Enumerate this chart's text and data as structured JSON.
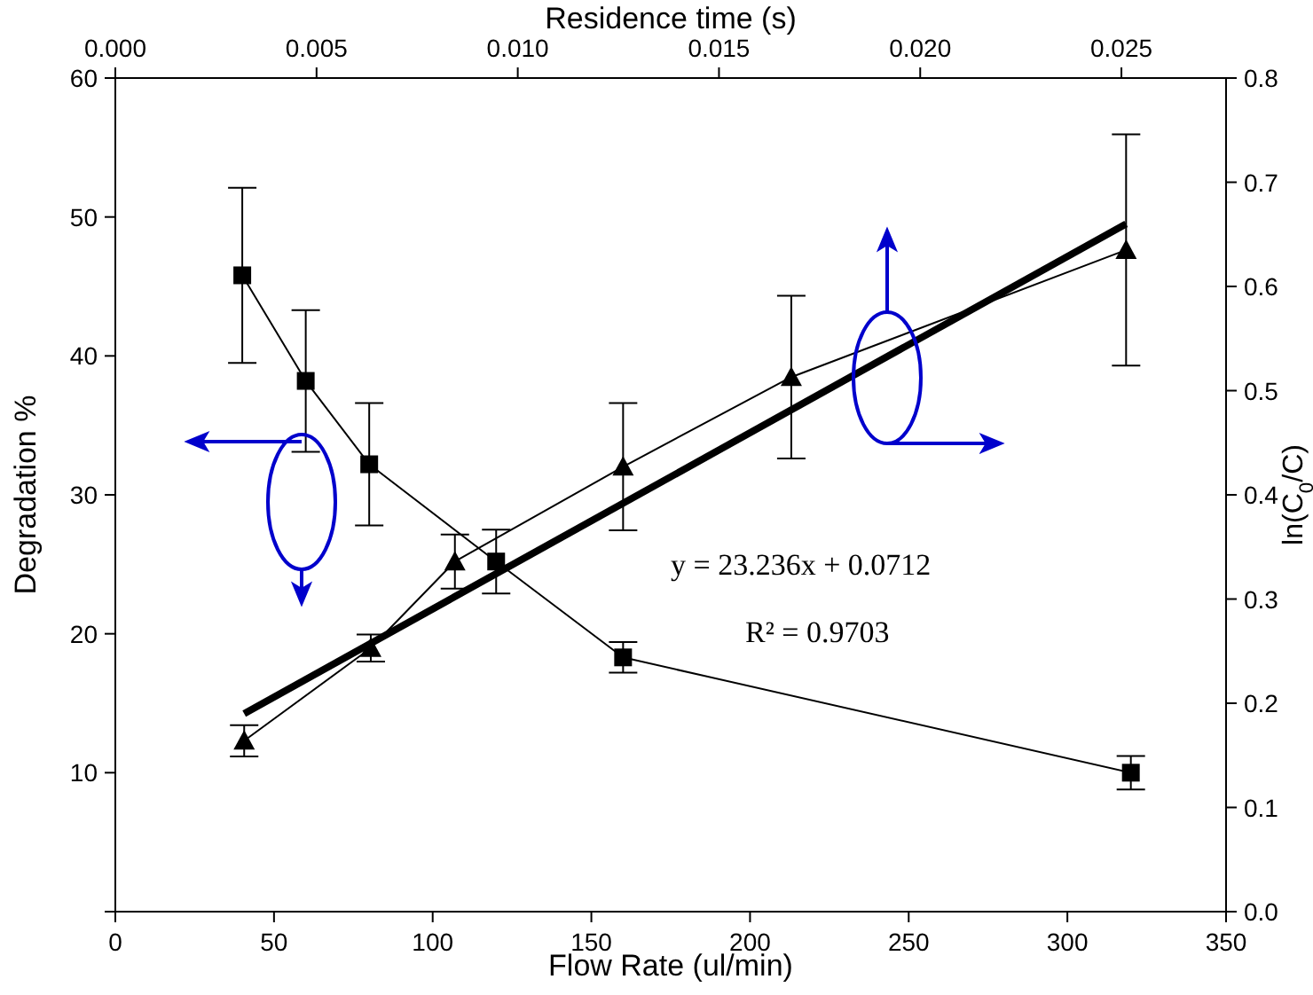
{
  "chart_data": {
    "type": "line",
    "xlabel": "Flow Rate (ul/min)",
    "ylabel": "Degradation %",
    "x2label": "Residence time (s)",
    "y2label": "ln(C$_{0}$/C)",
    "xlim": [
      0,
      350
    ],
    "xticks": [
      0,
      50,
      100,
      150,
      200,
      250,
      300,
      350
    ],
    "ylim": [
      0,
      60
    ],
    "yticks": [
      {
        "value": 0,
        "label": null
      },
      10,
      20,
      30,
      40,
      50,
      60
    ],
    "x2lim": [
      0,
      0.0276
    ],
    "x2ticks": [
      {
        "value": 0,
        "label": "0.000"
      },
      {
        "value": 0.005,
        "label": "0.005"
      },
      {
        "value": 0.01,
        "label": "0.010"
      },
      {
        "value": 0.015,
        "label": "0.015"
      },
      {
        "value": 0.02,
        "label": "0.020"
      },
      {
        "value": 0.025,
        "label": "0.025"
      }
    ],
    "y2lim": [
      0,
      0.8
    ],
    "y2ticks": [
      {
        "value": 0,
        "label": "0.0"
      },
      0.1,
      0.2,
      0.3,
      0.4,
      0.5,
      0.6,
      0.7,
      {
        "value": 0.8,
        "label": "0.8"
      }
    ],
    "series": [
      {
        "marker": "square",
        "color": "#000000",
        "x": [
          40,
          60,
          80,
          120,
          160,
          320
        ],
        "values": [
          45.8,
          38.2,
          32.2,
          25.2,
          18.3,
          10.0
        ],
        "errors": [
          6.3,
          5.1,
          4.4,
          2.3,
          1.1,
          1.2
        ]
      },
      {
        "marker": "triangle",
        "color": "#000000",
        "axis": "y2",
        "x": [
          40.6,
          80.5,
          107,
          160,
          213,
          318.5
        ],
        "values": [
          0.164,
          0.253,
          0.336,
          0.427,
          0.513,
          0.635
        ],
        "errors": [
          0.015,
          0.013,
          0.026,
          0.061,
          0.078,
          0.111
        ]
      },
      {
        "marker": "none",
        "color": "#000000",
        "axis": "y2",
        "x": [
          40.6,
          318.5
        ],
        "values": [
          0.19,
          0.66
        ]
      }
    ],
    "annotations": [
      "y = 23.236x + 0.0712",
      "R² = 0.9703"
    ]
  }
}
